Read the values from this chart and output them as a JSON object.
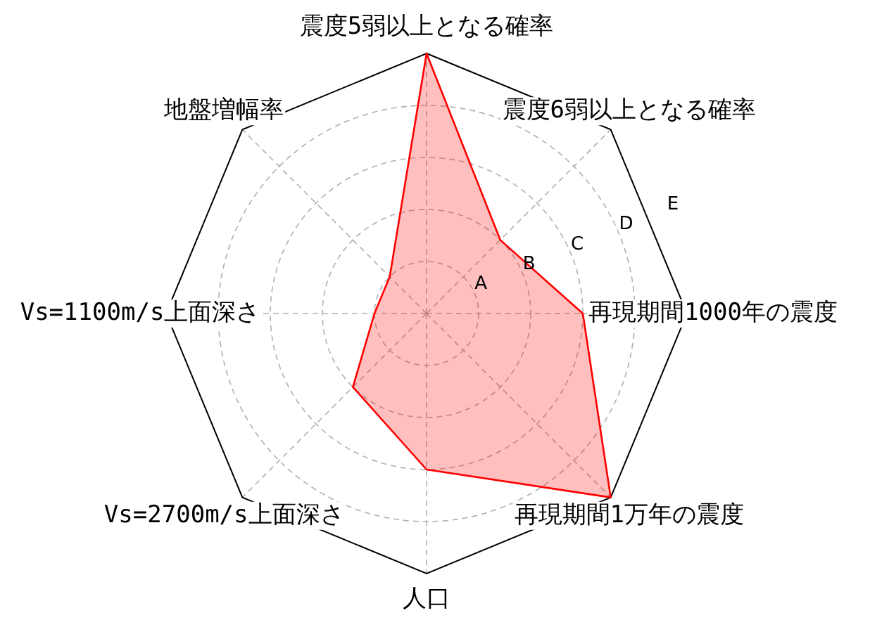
{
  "chart_data": {
    "type": "radar",
    "categories": [
      "震度5弱以上となる確率",
      "震度6弱以上となる確率",
      "再現期間1000年の震度",
      "再現期間1万年の震度",
      "人口",
      "Vs=2700m/s上面深さ",
      "Vs=1100m/s上面深さ",
      "地盤増幅率"
    ],
    "series": [
      {
        "color": "#ff0000",
        "values": [
          5,
          2,
          3,
          5,
          3,
          2,
          1,
          1
        ]
      }
    ],
    "ylim": [
      0,
      5
    ],
    "yticks": [
      {
        "value": 1,
        "label": "A"
      },
      {
        "value": 2,
        "label": "B"
      },
      {
        "value": 3,
        "label": "C"
      },
      {
        "value": 4,
        "label": "D"
      },
      {
        "value": 5,
        "label": "E"
      }
    ],
    "grid": true,
    "legend": false,
    "marker": "none",
    "line_style": "solid"
  }
}
